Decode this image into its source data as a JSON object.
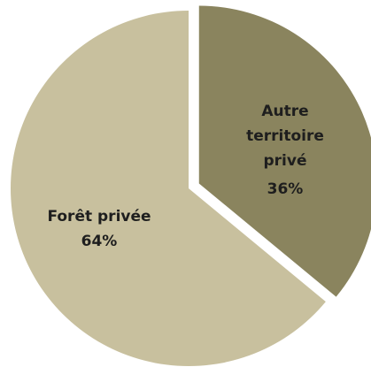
{
  "chart_data": {
    "type": "pie",
    "categories": [
      "Autre territoire privé",
      "Forêt privée"
    ],
    "values": [
      36,
      64
    ],
    "value_labels": [
      "36%",
      "64%"
    ],
    "colors": [
      "#8a845e",
      "#c8c09e"
    ],
    "exploded": [
      true,
      false
    ]
  }
}
